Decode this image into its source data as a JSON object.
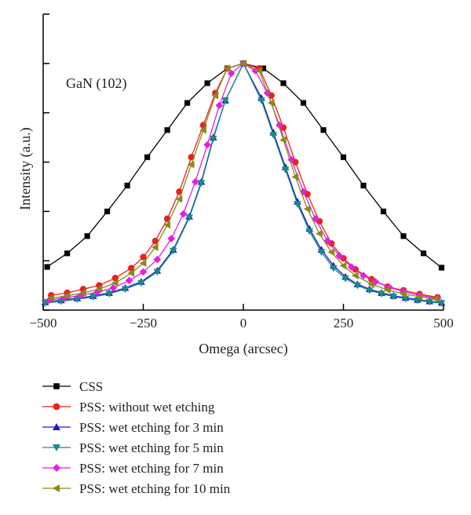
{
  "chart_data": {
    "type": "line",
    "title": "",
    "xlabel": "Omega (arcsec)",
    "ylabel": "Intensity (a.u.)",
    "xlim": [
      -500,
      500
    ],
    "ylim": [
      0,
      1.2
    ],
    "x_ticks": [
      -500,
      -250,
      0,
      250,
      500
    ],
    "x_tick_labels": [
      "−500",
      "−250",
      "0",
      "250",
      "500"
    ],
    "y_tick_labels_shown": false,
    "grid": false,
    "legend_position": "below-plot",
    "annotation": {
      "text": "GaN (102)",
      "color": "#e8231e"
    },
    "series": [
      {
        "name": "CSS",
        "color": "#000000",
        "marker": "square",
        "x": [
          -490,
          -440,
          -390,
          -340,
          -290,
          -240,
          -190,
          -140,
          -90,
          -40,
          0,
          50,
          100,
          150,
          200,
          250,
          300,
          350,
          400,
          450,
          495
        ],
        "y": [
          0.175,
          0.23,
          0.3,
          0.4,
          0.505,
          0.62,
          0.73,
          0.84,
          0.92,
          0.98,
          1.0,
          0.98,
          0.92,
          0.84,
          0.73,
          0.62,
          0.505,
          0.4,
          0.3,
          0.23,
          0.172
        ]
      },
      {
        "name": "PSS: without wet etching",
        "color": "#e8231e",
        "marker": "circle",
        "x": [
          -480,
          -440,
          -400,
          -360,
          -320,
          -280,
          -250,
          -220,
          -190,
          -160,
          -130,
          -100,
          -70,
          -40,
          0,
          40,
          70,
          100,
          130,
          160,
          190,
          220,
          250,
          280,
          320,
          360,
          400,
          440,
          485
        ],
        "y": [
          0.06,
          0.07,
          0.085,
          0.1,
          0.13,
          0.17,
          0.215,
          0.28,
          0.37,
          0.48,
          0.62,
          0.75,
          0.88,
          0.98,
          1.0,
          0.98,
          0.87,
          0.74,
          0.6,
          0.47,
          0.36,
          0.27,
          0.21,
          0.165,
          0.125,
          0.095,
          0.08,
          0.065,
          0.052
        ]
      },
      {
        "name": "PSS: wet etching for 3 min",
        "color": "#1a1ac8",
        "marker": "triangle-up",
        "x": [
          -495,
          -455,
          -415,
          -375,
          -335,
          -295,
          -255,
          -215,
          -175,
          -135,
          -105,
          -75,
          -45,
          0,
          45,
          75,
          105,
          135,
          165,
          195,
          225,
          255,
          285,
          315,
          345,
          375,
          405,
          435,
          465,
          495
        ],
        "y": [
          0.032,
          0.04,
          0.048,
          0.057,
          0.07,
          0.09,
          0.115,
          0.16,
          0.245,
          0.38,
          0.52,
          0.7,
          0.85,
          1.0,
          0.86,
          0.72,
          0.58,
          0.44,
          0.33,
          0.245,
          0.18,
          0.135,
          0.105,
          0.085,
          0.07,
          0.058,
          0.05,
          0.042,
          0.036,
          0.03
        ]
      },
      {
        "name": "PSS: wet etching for 5 min",
        "color": "#1b8a86",
        "marker": "triangle-down",
        "x": [
          -495,
          -455,
          -415,
          -375,
          -335,
          -295,
          -255,
          -215,
          -175,
          -135,
          -105,
          -75,
          -45,
          0,
          45,
          75,
          105,
          135,
          165,
          195,
          225,
          255,
          285,
          315,
          345,
          375,
          405,
          435,
          465,
          495
        ],
        "y": [
          0.028,
          0.036,
          0.044,
          0.053,
          0.066,
          0.085,
          0.11,
          0.155,
          0.24,
          0.375,
          0.515,
          0.695,
          0.85,
          1.0,
          0.85,
          0.71,
          0.57,
          0.43,
          0.32,
          0.235,
          0.17,
          0.128,
          0.1,
          0.08,
          0.066,
          0.055,
          0.046,
          0.039,
          0.033,
          0.028
        ]
      },
      {
        "name": "PSS: wet etching for 7 min",
        "color": "#e81ce8",
        "marker": "diamond",
        "x": [
          -485,
          -445,
          -405,
          -365,
          -325,
          -285,
          -250,
          -215,
          -180,
          -150,
          -120,
          -90,
          -60,
          -30,
          0,
          30,
          60,
          90,
          120,
          150,
          180,
          210,
          240,
          270,
          300,
          330,
          365,
          400,
          440,
          485
        ],
        "y": [
          0.04,
          0.05,
          0.06,
          0.073,
          0.09,
          0.12,
          0.155,
          0.205,
          0.29,
          0.39,
          0.52,
          0.67,
          0.83,
          0.96,
          1.0,
          0.97,
          0.88,
          0.75,
          0.61,
          0.48,
          0.37,
          0.28,
          0.22,
          0.175,
          0.14,
          0.115,
          0.092,
          0.075,
          0.06,
          0.048
        ]
      },
      {
        "name": "PSS: wet etching for 10 min",
        "color": "#8a8a14",
        "marker": "triangle-left",
        "x": [
          -480,
          -440,
          -400,
          -360,
          -320,
          -280,
          -250,
          -220,
          -190,
          -160,
          -130,
          -100,
          -70,
          -40,
          0,
          40,
          70,
          100,
          130,
          160,
          190,
          220,
          250,
          280,
          320,
          360,
          400,
          440,
          480
        ],
        "y": [
          0.048,
          0.058,
          0.07,
          0.085,
          0.11,
          0.15,
          0.19,
          0.255,
          0.345,
          0.45,
          0.59,
          0.73,
          0.87,
          0.98,
          1.0,
          0.97,
          0.84,
          0.69,
          0.54,
          0.41,
          0.31,
          0.235,
          0.18,
          0.14,
          0.105,
          0.082,
          0.066,
          0.054,
          0.046
        ]
      }
    ]
  }
}
